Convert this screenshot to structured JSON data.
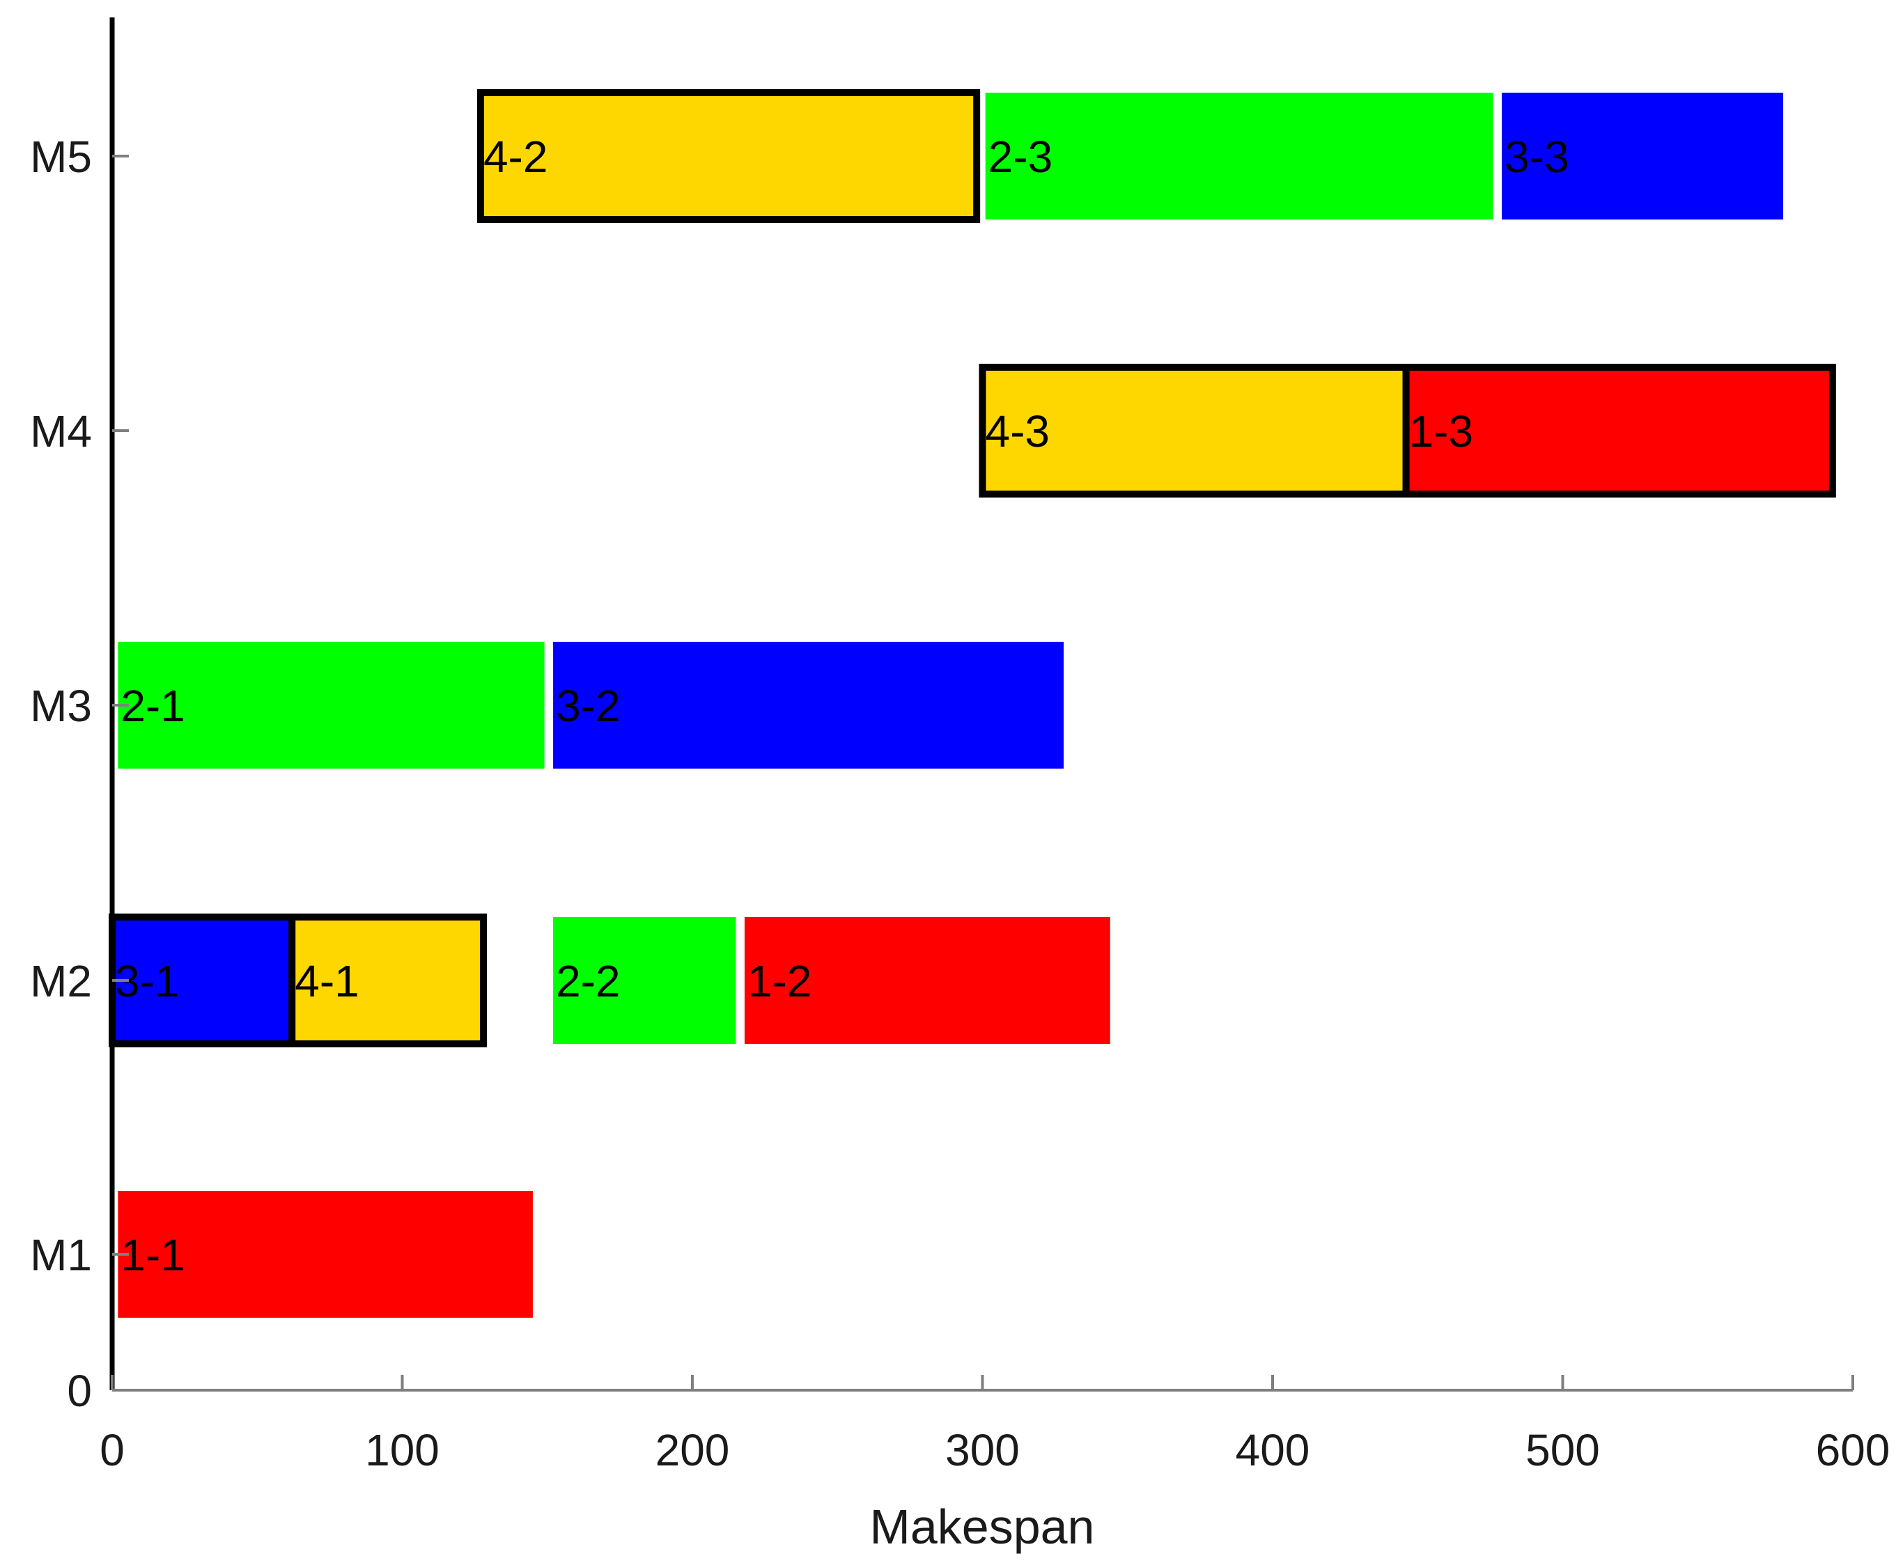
{
  "chart_data": {
    "type": "gantt",
    "title": "",
    "xlabel": "Makespan",
    "ylabel": "",
    "xlim": [
      0,
      600
    ],
    "x_ticks": [
      "0",
      "100",
      "200",
      "300",
      "400",
      "500",
      "600"
    ],
    "y_zero_label": "0",
    "machines": [
      "M1",
      "M2",
      "M3",
      "M4",
      "M5"
    ],
    "colors": {
      "job1": "#ff0000",
      "job2": "#00ff00",
      "job3": "#0000ff",
      "job4": "#ffd700",
      "outline": "#000000"
    },
    "operations": [
      {
        "label": "1-1",
        "machine": "M1",
        "start": 2,
        "end": 145,
        "job": "job1",
        "highlighted": false
      },
      {
        "label": "3-1",
        "machine": "M2",
        "start": 0,
        "end": 62,
        "job": "job3",
        "highlighted": true
      },
      {
        "label": "4-1",
        "machine": "M2",
        "start": 62,
        "end": 128,
        "job": "job4",
        "highlighted": true
      },
      {
        "label": "2-2",
        "machine": "M2",
        "start": 152,
        "end": 215,
        "job": "job2",
        "highlighted": false
      },
      {
        "label": "1-2",
        "machine": "M2",
        "start": 218,
        "end": 344,
        "job": "job1",
        "highlighted": false
      },
      {
        "label": "2-1",
        "machine": "M3",
        "start": 2,
        "end": 149,
        "job": "job2",
        "highlighted": false
      },
      {
        "label": "3-2",
        "machine": "M3",
        "start": 152,
        "end": 328,
        "job": "job3",
        "highlighted": false
      },
      {
        "label": "4-3",
        "machine": "M4",
        "start": 300,
        "end": 446,
        "job": "job4",
        "highlighted": true
      },
      {
        "label": "1-3",
        "machine": "M4",
        "start": 446,
        "end": 593,
        "job": "job1",
        "highlighted": true
      },
      {
        "label": "4-2",
        "machine": "M5",
        "start": 127,
        "end": 298,
        "job": "job4",
        "highlighted": true
      },
      {
        "label": "2-3",
        "machine": "M5",
        "start": 301,
        "end": 476,
        "job": "job2",
        "highlighted": false
      },
      {
        "label": "3-3",
        "machine": "M5",
        "start": 479,
        "end": 576,
        "job": "job3",
        "highlighted": false
      }
    ]
  }
}
